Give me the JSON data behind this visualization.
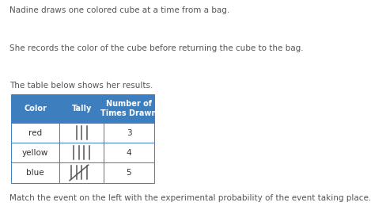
{
  "line1": "Nadine draws one colored cube at a time from a bag.",
  "line2": "She records the color of the cube before returning the cube to the bag.",
  "line3": "The table below shows her results.",
  "footer": "Match the event on the left with the experimental probability of the event taking place.",
  "table": {
    "headers": [
      "Color",
      "Tally",
      "Number of\nTimes Drawn"
    ],
    "rows": [
      [
        "red",
        3,
        "3"
      ],
      [
        "yellow",
        4,
        "4"
      ],
      [
        "blue",
        5,
        "5"
      ]
    ],
    "header_bg": "#3d7ebf",
    "header_text": "#ffffff",
    "row_bg": "#ffffff",
    "row_text": "#333333",
    "border_color": "#3d7ebf"
  },
  "text_color": "#555555",
  "bg_color": "#ffffff",
  "font_size": 7.5,
  "table_font_size": 7.5
}
